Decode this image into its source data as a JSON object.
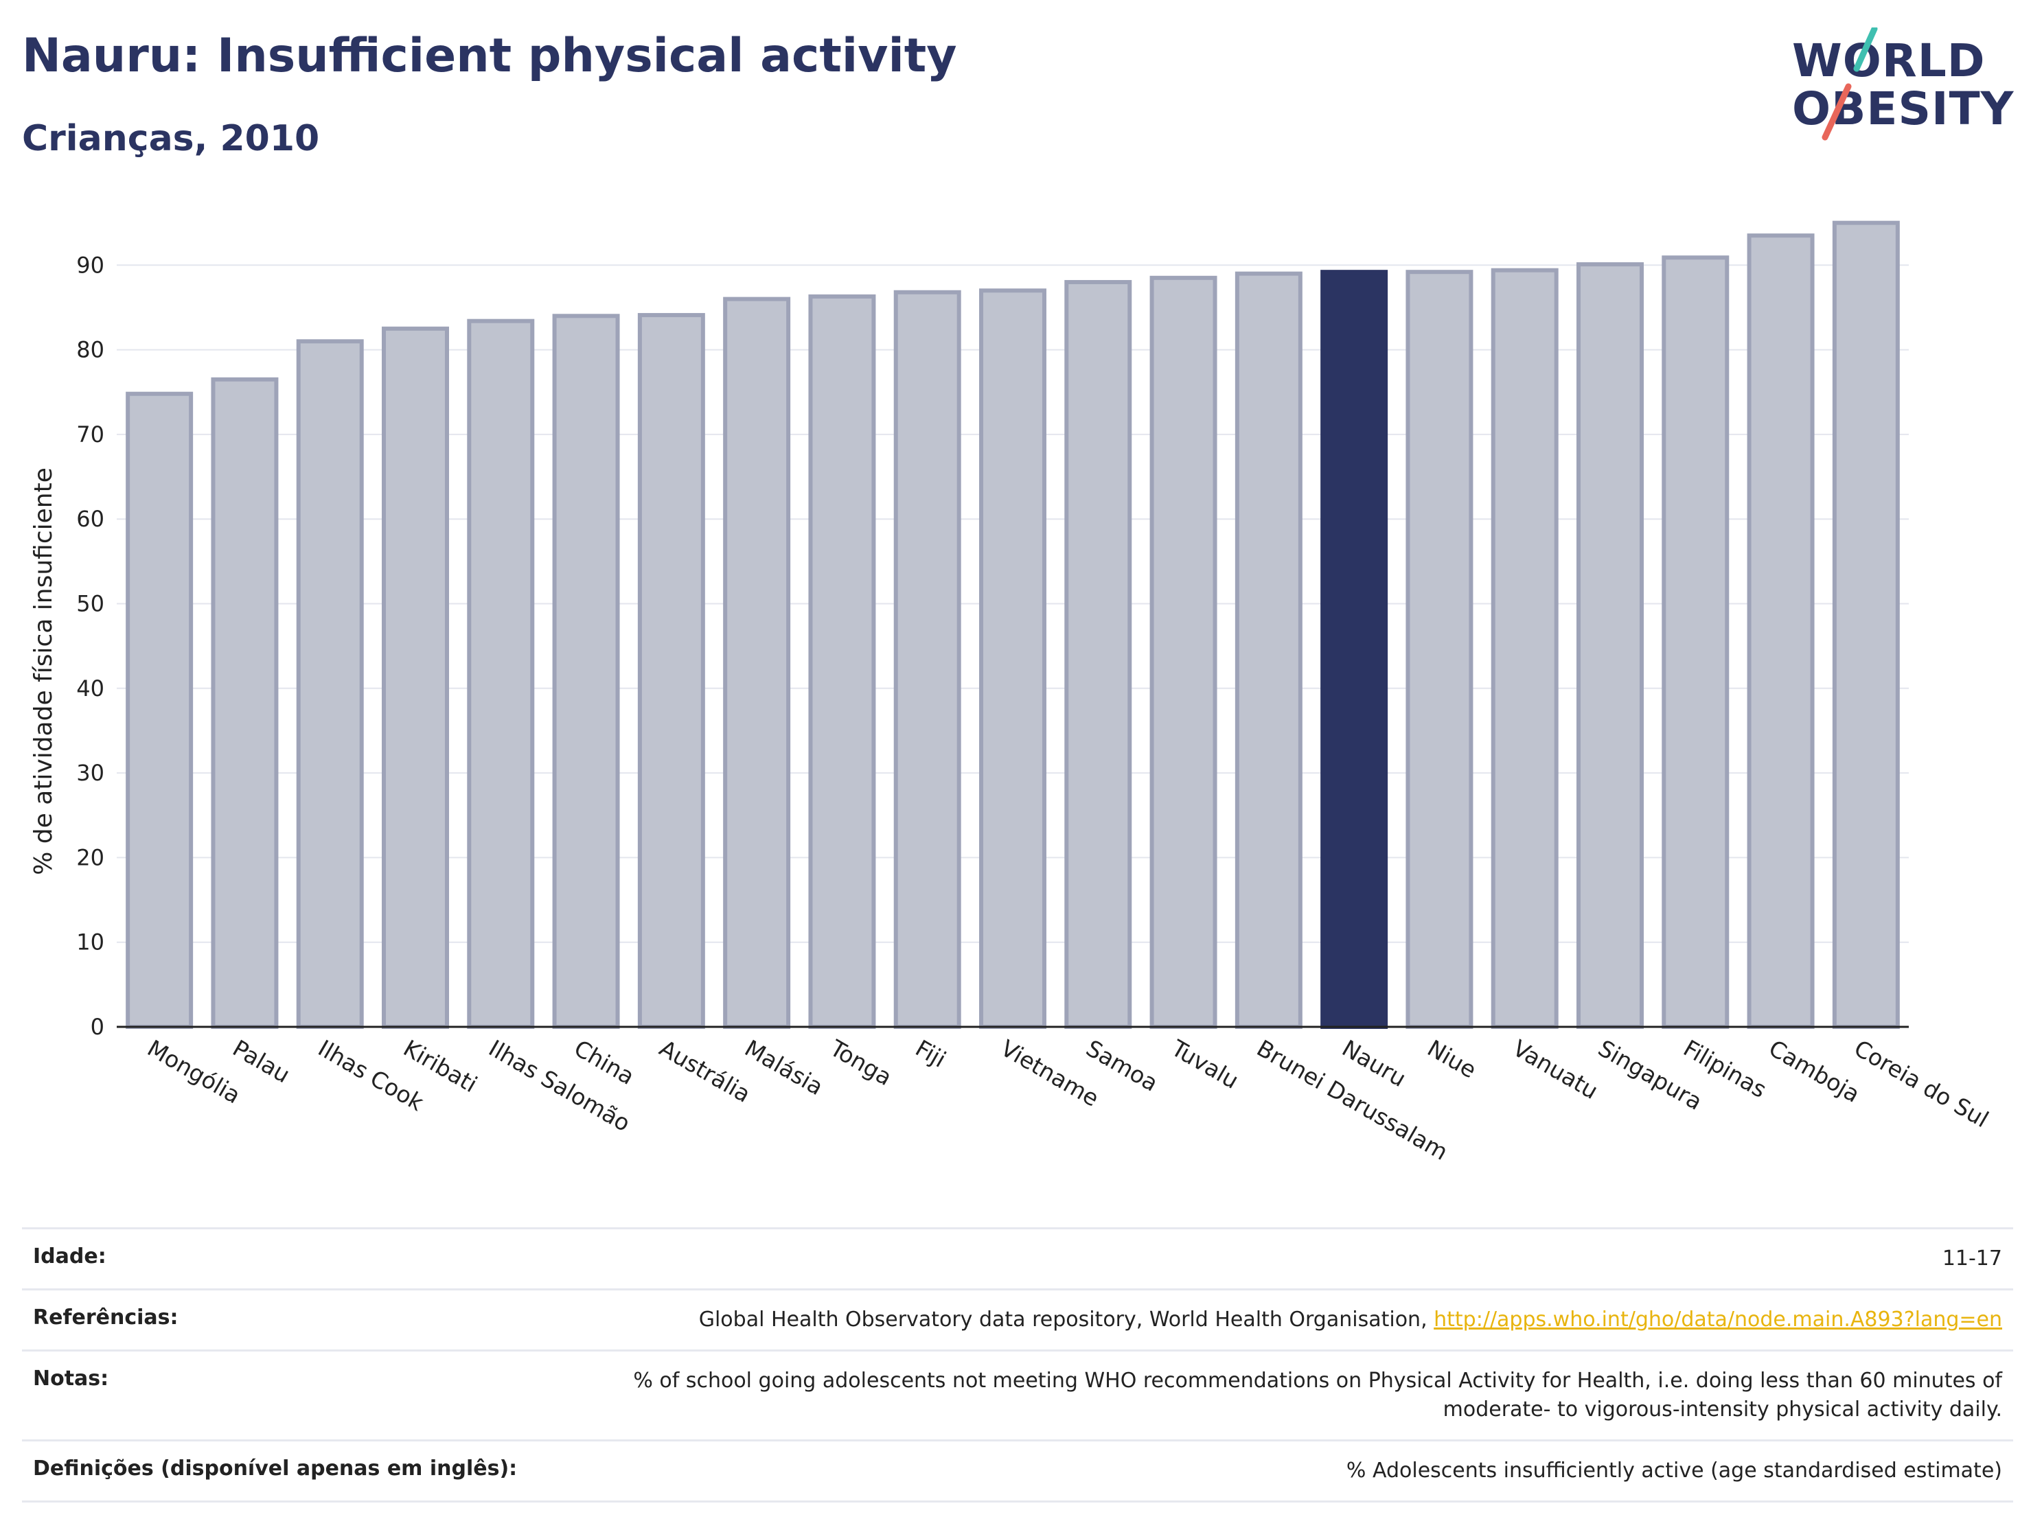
{
  "header": {
    "title": "Nauru: Insufficient physical activity",
    "subtitle": "Crianças, 2010"
  },
  "logo": {
    "line1": "WORLD",
    "line2": "OBESITY",
    "text_color": "#2b3462",
    "slash_colors": [
      "#3fbfb0",
      "#e8665a"
    ]
  },
  "colors": {
    "bar_default": "#bfc3cf",
    "bar_border": "#9ea3b8",
    "bar_highlight": "#2b3462",
    "grid": "#e4e6ee"
  },
  "chart_data": {
    "type": "bar",
    "ylabel": "% de atividade física insuficiente",
    "ylim": [
      0,
      97
    ],
    "yticks": [
      0,
      10,
      20,
      30,
      40,
      50,
      60,
      70,
      80,
      90
    ],
    "grid": true,
    "highlight": "Nauru",
    "categories": [
      "Mongólia",
      "Palau",
      "Ilhas Cook",
      "Kiribati",
      "Ilhas Salomão",
      "China",
      "Austrália",
      "Malásia",
      "Tonga",
      "Fiji",
      "Vietname",
      "Samoa",
      "Tuvalu",
      "Brunei Darussalam",
      "Nauru",
      "Niue",
      "Vanuatu",
      "Singapura",
      "Filipinas",
      "Camboja",
      "Coreia do Sul"
    ],
    "values": [
      74.8,
      76.5,
      81.0,
      82.5,
      83.4,
      84.0,
      84.1,
      86.0,
      86.3,
      86.8,
      87.0,
      88.0,
      88.5,
      89.0,
      89.2,
      89.2,
      89.4,
      90.1,
      90.9,
      93.5,
      95.0
    ]
  },
  "info": {
    "rows": [
      {
        "label": "Idade:",
        "value": "11-17"
      },
      {
        "label": "Referências:",
        "value": "Global Health Observatory data repository, World Health Organisation, ",
        "link": "http://apps.who.int/gho/data/node.main.A893?lang=en"
      },
      {
        "label": "Notas:",
        "value": "% of school going adolescents not meeting WHO recommendations on Physical Activity for Health, i.e. doing less than 60 minutes of moderate- to vigorous-intensity physical activity daily."
      },
      {
        "label": "Definições (disponível apenas em inglês):",
        "value": "% Adolescents insufficiently active (age standardised estimate)"
      }
    ]
  }
}
